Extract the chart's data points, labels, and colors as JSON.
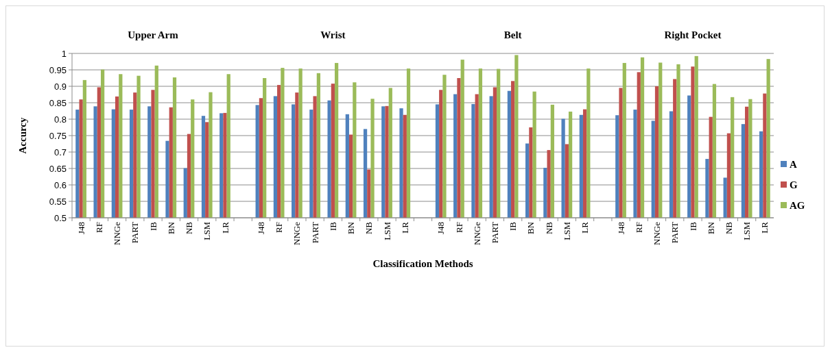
{
  "chart_data": {
    "type": "bar",
    "xlabel": "Classification Methods",
    "ylabel": "Accurcy",
    "categories": [
      "J48",
      "RF",
      "NNGe",
      "PART",
      "IB",
      "BN",
      "NB",
      "LSM",
      "LR",
      null,
      "J48",
      "RF",
      "NNGe",
      "PART",
      "IB",
      "BN",
      "NB",
      "LSM",
      "LR",
      null,
      "J48",
      "RF",
      "NNGe",
      "PART",
      "IB",
      "BN",
      "NB",
      "LSM",
      "LR",
      null,
      "J48",
      "RF",
      "NNGe",
      "PART",
      "IB",
      "BN",
      "NB",
      "LSM",
      "LR"
    ],
    "series": [
      {
        "name": "A",
        "color": "#4f81bd",
        "values": [
          0.829,
          0.839,
          0.83,
          0.829,
          0.839,
          0.734,
          0.651,
          0.81,
          0.818,
          null,
          0.843,
          0.87,
          0.845,
          0.829,
          0.857,
          0.815,
          0.77,
          0.839,
          0.833,
          null,
          0.845,
          0.876,
          0.846,
          0.87,
          0.886,
          0.726,
          0.652,
          0.801,
          0.813,
          null,
          0.812,
          0.829,
          0.795,
          0.824,
          0.872,
          0.679,
          0.622,
          0.785,
          0.763
        ]
      },
      {
        "name": "G",
        "color": "#c0504d",
        "values": [
          0.86,
          0.897,
          0.869,
          0.881,
          0.889,
          0.836,
          0.755,
          0.791,
          0.819,
          null,
          0.864,
          0.904,
          0.881,
          0.87,
          0.908,
          0.753,
          0.647,
          0.84,
          0.813,
          null,
          0.889,
          0.925,
          0.876,
          0.897,
          0.916,
          0.775,
          0.706,
          0.724,
          0.83,
          null,
          0.895,
          0.943,
          0.9,
          0.922,
          0.96,
          0.807,
          0.757,
          0.838,
          0.878
        ]
      },
      {
        "name": "AG",
        "color": "#9bbb59",
        "values": [
          0.919,
          0.951,
          0.937,
          0.932,
          0.963,
          0.927,
          0.86,
          0.882,
          0.937,
          null,
          0.925,
          0.956,
          0.954,
          0.94,
          0.971,
          0.912,
          0.862,
          0.895,
          0.954,
          null,
          0.935,
          0.981,
          0.954,
          0.953,
          0.995,
          0.884,
          0.844,
          0.823,
          0.954,
          null,
          0.971,
          0.988,
          0.972,
          0.967,
          0.992,
          0.907,
          0.867,
          0.861,
          0.983
        ]
      }
    ],
    "ylim": [
      0.5,
      1
    ],
    "yticks": [
      0.5,
      0.55,
      0.6,
      0.65,
      0.7,
      0.75,
      0.8,
      0.85,
      0.9,
      0.95,
      {
        "value": 1,
        "label": "1"
      }
    ],
    "grid": "y",
    "legend": "right",
    "annotations": [
      "Upper Arm",
      "Wrist",
      "Belt",
      "Right Pocket"
    ]
  }
}
